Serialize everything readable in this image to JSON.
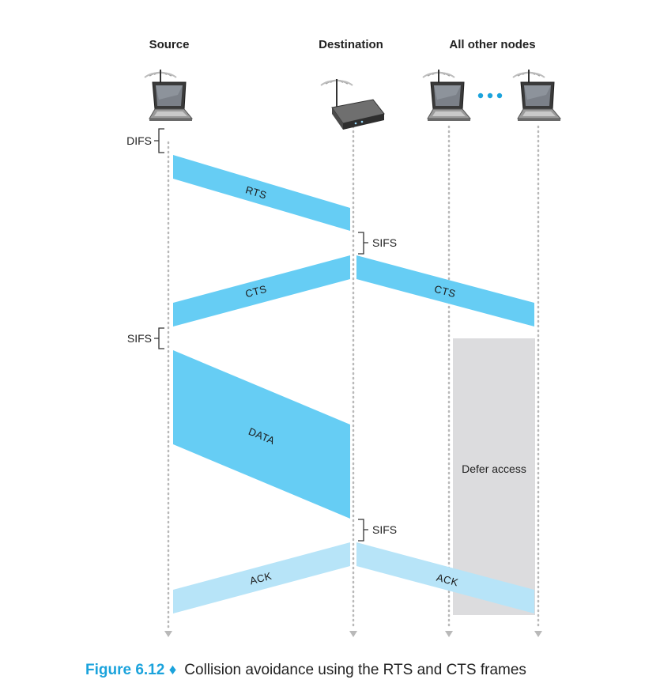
{
  "nodes": {
    "source": "Source",
    "destination": "Destination",
    "others": "All other nodes"
  },
  "intervals": {
    "difs": "DIFS",
    "sifs_source": "SIFS",
    "sifs_dest_1": "SIFS",
    "sifs_dest_2": "SIFS"
  },
  "frames": {
    "rts": "RTS",
    "cts_to_source": "CTS",
    "cts_to_others": "CTS",
    "data": "DATA",
    "ack_to_source": "ACK",
    "ack_to_others": "ACK"
  },
  "defer": "Defer access",
  "caption": {
    "number": "Figure 6.12 ♦",
    "text": "Collision avoidance using the RTS and CTS frames"
  },
  "colors": {
    "frame": "#66cdf4",
    "ack": "#b7e4f8",
    "defer": "#dcdcde",
    "timeline": "#b9b9b9",
    "caption_accent": "#1ba3dc"
  },
  "icons": {
    "source": "laptop-icon",
    "destination": "access-point-icon",
    "others": "laptop-icon"
  }
}
